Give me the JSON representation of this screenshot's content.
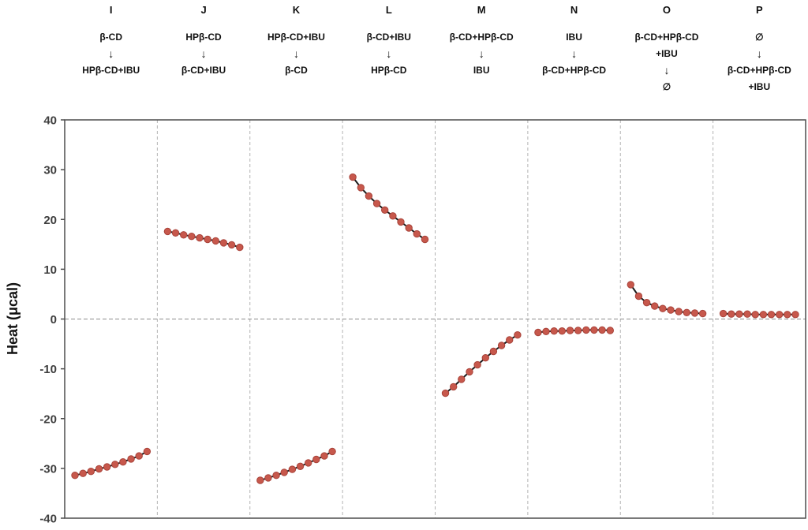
{
  "chart_data": {
    "type": "scatter",
    "title": "",
    "ylabel": "Heat (μcal)",
    "ylim": [
      -40,
      40
    ],
    "yticks": [
      -40,
      -30,
      -20,
      -10,
      0,
      10,
      20,
      30,
      40
    ],
    "zero_line": true,
    "panel_separator_style": "dashed",
    "grid": false,
    "legend": "none",
    "colors": {
      "point": "#c7584c",
      "point_edge": "#a8433a",
      "line": "#1a1a1a",
      "axis": "#4d4d4d",
      "separator": "#b3b3b3",
      "zero_line": "#8c8c8c",
      "tick_label": "#3f3f3f"
    },
    "panels": [
      {
        "label": "I",
        "header_lines": [
          "β-CD",
          "↓",
          "HPβ-CD+IBU"
        ],
        "values": [
          -31.4,
          -31.0,
          -30.6,
          -30.1,
          -29.7,
          -29.2,
          -28.7,
          -28.1,
          -27.5,
          -26.6
        ]
      },
      {
        "label": "J",
        "header_lines": [
          "HPβ-CD",
          "↓",
          "β-CD+IBU"
        ],
        "values": [
          17.6,
          17.3,
          16.9,
          16.6,
          16.3,
          16.0,
          15.7,
          15.3,
          14.9,
          14.4
        ]
      },
      {
        "label": "K",
        "header_lines": [
          "HPβ-CD+IBU",
          "↓",
          "β-CD"
        ],
        "values": [
          -32.4,
          -31.9,
          -31.4,
          -30.8,
          -30.2,
          -29.6,
          -28.9,
          -28.2,
          -27.5,
          -26.6
        ]
      },
      {
        "label": "L",
        "header_lines": [
          "β-CD+IBU",
          "↓",
          "HPβ-CD"
        ],
        "values": [
          28.5,
          26.4,
          24.7,
          23.2,
          21.9,
          20.7,
          19.5,
          18.3,
          17.1,
          16.0
        ]
      },
      {
        "label": "M",
        "header_lines": [
          "β-CD+HPβ-CD",
          "↓",
          "IBU"
        ],
        "values": [
          -14.9,
          -13.6,
          -12.1,
          -10.6,
          -9.2,
          -7.8,
          -6.5,
          -5.3,
          -4.2,
          -3.2
        ]
      },
      {
        "label": "N",
        "header_lines": [
          "IBU",
          "↓",
          "β-CD+HPβ-CD"
        ],
        "values": [
          -2.7,
          -2.5,
          -2.4,
          -2.4,
          -2.3,
          -2.3,
          -2.2,
          -2.2,
          -2.2,
          -2.3
        ]
      },
      {
        "label": "O",
        "header_lines": [
          "β-CD+HPβ-CD",
          "+IBU",
          "↓",
          "∅"
        ],
        "values": [
          6.9,
          4.6,
          3.3,
          2.6,
          2.1,
          1.8,
          1.5,
          1.3,
          1.2,
          1.1
        ]
      },
      {
        "label": "P",
        "header_lines": [
          "∅",
          "↓",
          "β-CD+HPβ-CD",
          "+IBU"
        ],
        "values": [
          1.1,
          1.0,
          1.0,
          1.0,
          0.9,
          0.9,
          0.9,
          0.9,
          0.9,
          0.9
        ]
      }
    ]
  }
}
